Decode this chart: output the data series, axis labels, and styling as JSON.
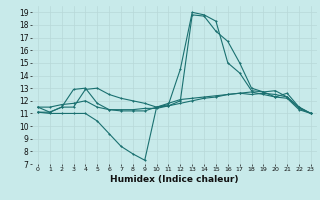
{
  "title": "",
  "xlabel": "Humidex (Indice chaleur)",
  "bg_color": "#c8eaea",
  "grid_color": "#b8d8d8",
  "line_color": "#1a7070",
  "xlim": [
    -0.5,
    23.5
  ],
  "ylim": [
    7,
    19.5
  ],
  "xticks": [
    0,
    1,
    2,
    3,
    4,
    5,
    6,
    7,
    8,
    9,
    10,
    11,
    12,
    13,
    14,
    15,
    16,
    17,
    18,
    19,
    20,
    21,
    22,
    23
  ],
  "yticks": [
    7,
    8,
    9,
    10,
    11,
    12,
    13,
    14,
    15,
    16,
    17,
    18,
    19
  ],
  "curve1_x": [
    0,
    1,
    2,
    3,
    4,
    5,
    6,
    7,
    8,
    9,
    10,
    11,
    12,
    13,
    14,
    15,
    16,
    17,
    18,
    19,
    20,
    21,
    22,
    23
  ],
  "curve1_y": [
    11.1,
    11.1,
    11.5,
    12.9,
    13.0,
    11.8,
    11.3,
    11.2,
    11.2,
    11.2,
    11.5,
    11.8,
    12.1,
    12.2,
    12.3,
    12.4,
    12.5,
    12.6,
    12.5,
    12.6,
    12.5,
    12.3,
    11.5,
    11.0
  ],
  "curve2_x": [
    0,
    1,
    2,
    3,
    4,
    5,
    6,
    7,
    8,
    9,
    10,
    11,
    12,
    13,
    14,
    15,
    16,
    17,
    18,
    19,
    20,
    21,
    22,
    23
  ],
  "curve2_y": [
    11.1,
    11.0,
    11.0,
    11.0,
    11.0,
    10.4,
    9.4,
    8.4,
    7.8,
    7.3,
    11.5,
    11.6,
    12.0,
    18.8,
    18.7,
    17.5,
    16.7,
    15.0,
    13.0,
    12.7,
    12.8,
    12.3,
    11.4,
    11.0
  ],
  "curve3_x": [
    0,
    1,
    2,
    3,
    4,
    5,
    6,
    7,
    8,
    9,
    10,
    11,
    12,
    13,
    14,
    15,
    16,
    17,
    18,
    19,
    20,
    21,
    22,
    23
  ],
  "curve3_y": [
    11.5,
    11.1,
    11.5,
    11.5,
    12.9,
    13.0,
    12.5,
    12.2,
    12.0,
    11.8,
    11.5,
    11.7,
    14.5,
    19.0,
    18.8,
    18.3,
    15.0,
    14.2,
    12.8,
    12.7,
    12.3,
    12.6,
    11.5,
    11.0
  ],
  "curve4_x": [
    0,
    1,
    2,
    3,
    4,
    5,
    6,
    7,
    8,
    9,
    10,
    11,
    12,
    13,
    14,
    15,
    16,
    17,
    18,
    19,
    20,
    21,
    22,
    23
  ],
  "curve4_y": [
    11.5,
    11.5,
    11.7,
    11.8,
    12.0,
    11.5,
    11.3,
    11.3,
    11.3,
    11.4,
    11.4,
    11.6,
    11.8,
    12.0,
    12.2,
    12.3,
    12.5,
    12.6,
    12.7,
    12.5,
    12.3,
    12.2,
    11.3,
    11.0
  ],
  "tick_fontsize": 5.5,
  "xlabel_fontsize": 6.5
}
